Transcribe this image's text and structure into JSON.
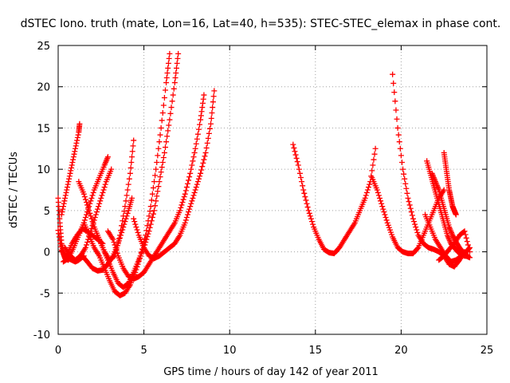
{
  "chart_data": {
    "type": "scatter",
    "title": "dSTEC Iono. truth (mate, Lon=16, Lat=40, h=535): STEC-STEC_elemax in phase cont.",
    "xlabel": "GPS time / hours of day 142 of year 2011",
    "ylabel": "dSTEC  / TECUs",
    "xlim": [
      0,
      25
    ],
    "ylim": [
      -10,
      25
    ],
    "xticks": [
      0,
      5,
      10,
      15,
      20,
      25
    ],
    "yticks": [
      -10,
      -5,
      0,
      5,
      10,
      15,
      20,
      25
    ],
    "grid": true,
    "marker": "+",
    "color": "#ff0000",
    "arcs": [
      {
        "x": [
          0.0,
          0.1,
          0.2,
          0.3,
          0.4,
          0.6
        ],
        "y": [
          6.5,
          3.5,
          1.0,
          -0.2,
          -0.8,
          -1.0
        ]
      },
      {
        "x": [
          0.0,
          0.2,
          0.4,
          0.6,
          0.8,
          1.0,
          1.2,
          1.5
        ],
        "y": [
          2.6,
          0.2,
          -0.5,
          -0.8,
          -1.0,
          -1.2,
          -1.0,
          -0.5
        ]
      },
      {
        "x": [
          0.2,
          0.4,
          0.6,
          0.8,
          1.0,
          1.2,
          1.25
        ],
        "y": [
          4.5,
          6.5,
          8.5,
          10.5,
          12.5,
          14.5,
          15.5
        ]
      },
      {
        "x": [
          0.3,
          0.6,
          0.9,
          1.2,
          1.5,
          1.8,
          2.1,
          2.4,
          2.7,
          2.9
        ],
        "y": [
          -1.2,
          -0.8,
          0.5,
          2.0,
          3.5,
          5.5,
          7.5,
          9.0,
          10.5,
          11.5
        ]
      },
      {
        "x": [
          0.4,
          0.7,
          1.0,
          1.3,
          1.6,
          1.9,
          2.2,
          2.5,
          2.8,
          3.1
        ],
        "y": [
          0.5,
          -0.5,
          -1.0,
          -0.5,
          0.5,
          2.5,
          4.5,
          6.5,
          8.5,
          10.0
        ]
      },
      {
        "x": [
          0.5,
          0.8,
          1.1,
          1.4,
          1.7,
          2.0,
          2.3,
          2.6
        ],
        "y": [
          -0.5,
          1.0,
          2.0,
          2.8,
          2.5,
          2.0,
          1.5,
          1.0
        ]
      },
      {
        "x": [
          1.2,
          1.5,
          1.8,
          2.1,
          2.4,
          2.7,
          3.0,
          3.3,
          3.6,
          3.9,
          4.2,
          4.4
        ],
        "y": [
          8.5,
          7.0,
          5.0,
          3.0,
          1.5,
          0.0,
          -1.0,
          -0.5,
          2.0,
          5.5,
          9.5,
          13.5
        ]
      },
      {
        "x": [
          1.4,
          1.7,
          2.0,
          2.3,
          2.6,
          2.9,
          3.2,
          3.5,
          3.8,
          4.1,
          4.3
        ],
        "y": [
          -0.5,
          -1.2,
          -2.0,
          -2.3,
          -2.2,
          -1.5,
          -0.5,
          1.0,
          3.0,
          5.0,
          6.5
        ]
      },
      {
        "x": [
          1.5,
          1.8,
          2.1,
          2.4,
          2.7,
          3.0,
          3.3,
          3.6,
          3.9,
          4.2,
          4.5,
          4.8,
          5.1,
          5.4,
          5.7,
          6.0,
          6.3,
          6.5
        ],
        "y": [
          3.5,
          2.0,
          0.5,
          -0.5,
          -2.0,
          -3.5,
          -4.8,
          -5.3,
          -5.0,
          -4.0,
          -2.5,
          -0.5,
          2.0,
          5.5,
          10.0,
          15.0,
          20.5,
          24.0
        ]
      },
      {
        "x": [
          2.3,
          2.6,
          2.9,
          3.2,
          3.5,
          3.8,
          4.1,
          4.4,
          4.7,
          5.0,
          5.3,
          5.6,
          5.9,
          6.2,
          6.5,
          6.8,
          7.0
        ],
        "y": [
          2.0,
          0.5,
          -1.0,
          -2.5,
          -3.8,
          -4.3,
          -3.8,
          -2.5,
          -1.0,
          0.5,
          2.5,
          5.0,
          8.5,
          12.0,
          16.0,
          20.5,
          24.0
        ]
      },
      {
        "x": [
          2.9,
          3.2,
          3.5,
          3.8,
          4.1,
          4.4,
          4.7,
          5.0,
          5.3,
          5.6,
          5.9,
          6.2,
          6.5,
          6.8,
          7.1,
          7.4,
          7.7,
          8.0,
          8.3,
          8.5
        ],
        "y": [
          2.5,
          1.5,
          -0.5,
          -2.0,
          -3.0,
          -3.3,
          -3.0,
          -2.5,
          -1.5,
          -0.5,
          0.5,
          1.5,
          2.5,
          3.5,
          5.0,
          7.0,
          9.5,
          12.5,
          16.0,
          19.0
        ]
      },
      {
        "x": [
          4.4,
          4.7,
          5.0,
          5.3,
          5.6,
          5.9,
          6.2,
          6.5,
          6.8,
          7.1,
          7.4,
          7.7,
          8.0,
          8.3,
          8.6,
          8.9,
          9.1
        ],
        "y": [
          4.0,
          2.0,
          0.5,
          -0.5,
          -0.8,
          -0.5,
          0.0,
          0.5,
          1.0,
          2.0,
          3.5,
          5.5,
          7.5,
          9.5,
          12.0,
          15.5,
          19.5
        ]
      },
      {
        "x": [
          13.7,
          14.0,
          14.3,
          14.6,
          14.9,
          15.2,
          15.5,
          15.8,
          16.1,
          16.4,
          16.7,
          17.0,
          17.3,
          17.6,
          17.9,
          18.2,
          18.5
        ],
        "y": [
          13.0,
          10.5,
          7.5,
          5.0,
          3.0,
          1.5,
          0.3,
          -0.1,
          -0.2,
          0.5,
          1.5,
          2.5,
          3.5,
          5.0,
          6.5,
          8.5,
          12.5
        ]
      },
      {
        "x": [
          18.3,
          18.6,
          18.9,
          19.2,
          19.5,
          19.8,
          20.1,
          20.4,
          20.7,
          21.0,
          21.3,
          21.6,
          21.9,
          22.2,
          22.5
        ],
        "y": [
          9.0,
          7.5,
          5.5,
          3.5,
          1.8,
          0.5,
          0.0,
          -0.2,
          -0.2,
          0.5,
          2.0,
          3.5,
          5.0,
          6.5,
          7.5
        ]
      },
      {
        "x": [
          19.5,
          19.8,
          20.1,
          20.4,
          20.7,
          21.0,
          21.3,
          21.6,
          21.9,
          22.2,
          22.5,
          22.8,
          23.1,
          23.4,
          23.7
        ],
        "y": [
          21.5,
          15.0,
          10.0,
          6.5,
          4.0,
          2.0,
          1.0,
          0.5,
          0.3,
          0.0,
          -0.5,
          -1.5,
          -1.8,
          -1.0,
          0.0
        ]
      },
      {
        "x": [
          21.5,
          21.7,
          21.9,
          22.1,
          22.3,
          22.5,
          22.7,
          22.9,
          23.1,
          23.3,
          23.5,
          23.7,
          23.9
        ],
        "y": [
          11.0,
          9.5,
          8.0,
          6.5,
          5.0,
          3.5,
          2.0,
          1.0,
          0.5,
          0.0,
          -0.3,
          -0.5,
          -0.5
        ]
      },
      {
        "x": [
          21.8,
          22.0,
          22.2,
          22.4,
          22.6,
          22.8,
          23.0,
          23.2,
          23.4,
          23.6,
          23.8,
          24.0
        ],
        "y": [
          9.5,
          8.5,
          7.5,
          6.0,
          4.5,
          3.0,
          2.0,
          1.2,
          0.5,
          0.0,
          -0.5,
          -0.7
        ]
      },
      {
        "x": [
          22.5,
          22.6,
          22.7,
          22.8,
          22.9,
          23.0,
          23.1,
          23.2
        ],
        "y": [
          12.0,
          10.5,
          9.0,
          7.5,
          6.5,
          5.5,
          5.0,
          4.5
        ]
      },
      {
        "x": [
          21.4,
          21.7,
          22.0,
          22.3,
          22.6,
          22.9,
          23.2,
          23.5,
          23.8,
          24.0
        ],
        "y": [
          4.5,
          3.0,
          1.5,
          0.5,
          -0.5,
          -1.2,
          -1.0,
          -0.5,
          0.0,
          0.5
        ]
      },
      {
        "x": [
          22.2,
          22.5,
          22.8,
          23.1,
          23.4,
          23.7,
          24.0
        ],
        "y": [
          -1.0,
          -0.5,
          0.3,
          1.0,
          2.0,
          2.5,
          0.0
        ]
      }
    ]
  }
}
